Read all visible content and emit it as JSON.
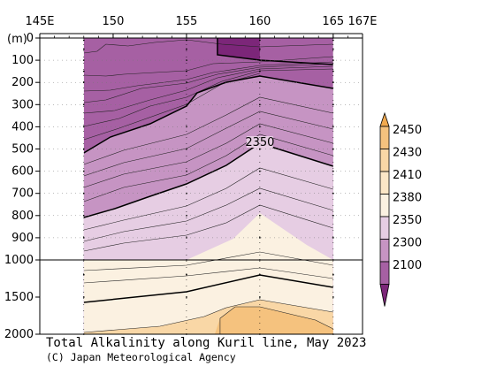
{
  "chart_data": {
    "type": "contour",
    "title": "Total Alkalinity along Kuril line, May 2023",
    "credit": "(C) Japan Meteorological Agency",
    "y_unit_label": "(m)",
    "x_ticks": [
      {
        "lon": 145,
        "label": "145E"
      },
      {
        "lon": 150,
        "label": "150"
      },
      {
        "lon": 155,
        "label": "155"
      },
      {
        "lon": 160,
        "label": "160"
      },
      {
        "lon": 165,
        "label": "165"
      },
      {
        "lon": 167,
        "label": "167E"
      }
    ],
    "x_range": [
      145,
      167
    ],
    "y_ticks_upper": [
      0,
      100,
      200,
      300,
      400,
      500,
      600,
      700,
      800,
      900,
      1000
    ],
    "y_ticks_lower": [
      1500,
      2000
    ],
    "y_break_depth": 1000,
    "y_range": [
      0,
      2000
    ],
    "station_lons": [
      148,
      155,
      160,
      165
    ],
    "contour_label": "2350",
    "colorbar": {
      "labels": [
        "2450",
        "2430",
        "2410",
        "2380",
        "2350",
        "2300",
        "2100"
      ],
      "colors": [
        "#f5c27e",
        "#f9d7a6",
        "#fbe6c6",
        "#fbf1e1",
        "#e6cde3",
        "#c694c3",
        "#a660a3",
        "#7c2679"
      ]
    },
    "colors": {
      "lt_2100": "#7c2679",
      "c2100_2300": "#a660a3",
      "c2300_2350": "#c694c3",
      "c2350_2380": "#e6cde3",
      "c2380_2410": "#fbf1e1",
      "c2410_2430": "#f9d7a6",
      "c2430_2450": "#f5c27e",
      "gt_2450": "#f1a94f"
    }
  }
}
